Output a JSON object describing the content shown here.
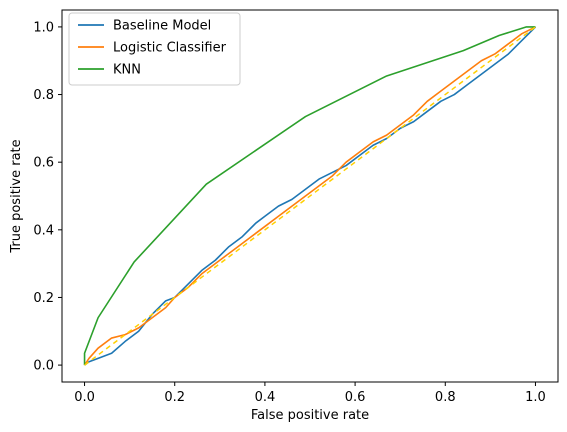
{
  "chart_data": {
    "type": "line",
    "xlabel": "False positive rate",
    "ylabel": "True positive rate",
    "xlim": [
      -0.05,
      1.05
    ],
    "ylim": [
      -0.05,
      1.05
    ],
    "xticks": [
      "0.0",
      "0.2",
      "0.4",
      "0.6",
      "0.8",
      "1.0"
    ],
    "yticks": [
      "0.0",
      "0.2",
      "0.4",
      "0.6",
      "0.8",
      "1.0"
    ],
    "grid": false,
    "legend_position": "top-left",
    "series": [
      {
        "name": "Baseline Model",
        "color": "#1f77b4",
        "x": [
          0.0,
          0.01,
          0.03,
          0.06,
          0.09,
          0.12,
          0.15,
          0.18,
          0.2,
          0.23,
          0.26,
          0.29,
          0.32,
          0.35,
          0.38,
          0.4,
          0.43,
          0.46,
          0.49,
          0.52,
          0.55,
          0.58,
          0.61,
          0.64,
          0.67,
          0.7,
          0.73,
          0.76,
          0.79,
          0.82,
          0.85,
          0.88,
          0.91,
          0.94,
          0.97,
          1.0
        ],
        "y": [
          0.0,
          0.01,
          0.02,
          0.035,
          0.07,
          0.1,
          0.15,
          0.19,
          0.2,
          0.24,
          0.28,
          0.31,
          0.35,
          0.38,
          0.42,
          0.44,
          0.47,
          0.49,
          0.52,
          0.55,
          0.57,
          0.59,
          0.62,
          0.65,
          0.67,
          0.7,
          0.72,
          0.75,
          0.78,
          0.8,
          0.83,
          0.86,
          0.89,
          0.92,
          0.96,
          1.0
        ]
      },
      {
        "name": "Logistic Classifier",
        "color": "#ff7f0e",
        "x": [
          0.0,
          0.01,
          0.03,
          0.06,
          0.09,
          0.12,
          0.15,
          0.18,
          0.2,
          0.23,
          0.26,
          0.29,
          0.32,
          0.35,
          0.38,
          0.4,
          0.43,
          0.46,
          0.49,
          0.52,
          0.55,
          0.58,
          0.61,
          0.64,
          0.67,
          0.7,
          0.73,
          0.76,
          0.79,
          0.82,
          0.85,
          0.88,
          0.91,
          0.94,
          0.97,
          1.0
        ],
        "y": [
          0.0,
          0.02,
          0.05,
          0.08,
          0.09,
          0.11,
          0.14,
          0.17,
          0.2,
          0.23,
          0.27,
          0.3,
          0.33,
          0.36,
          0.39,
          0.41,
          0.44,
          0.47,
          0.5,
          0.53,
          0.56,
          0.6,
          0.63,
          0.66,
          0.68,
          0.71,
          0.74,
          0.78,
          0.81,
          0.84,
          0.87,
          0.9,
          0.92,
          0.95,
          0.98,
          1.0
        ]
      },
      {
        "name": "KNN",
        "color": "#2ca02c",
        "x": [
          0.0,
          0.0,
          0.03,
          0.11,
          0.27,
          0.49,
          0.67,
          0.84,
          0.92,
          0.98,
          1.0
        ],
        "y": [
          0.0,
          0.035,
          0.14,
          0.305,
          0.535,
          0.735,
          0.855,
          0.93,
          0.975,
          1.0,
          1.0
        ]
      },
      {
        "name": "",
        "color": "#ffd000",
        "dashed": true,
        "x": [
          0.0,
          1.0
        ],
        "y": [
          0.0,
          1.0
        ]
      }
    ]
  }
}
